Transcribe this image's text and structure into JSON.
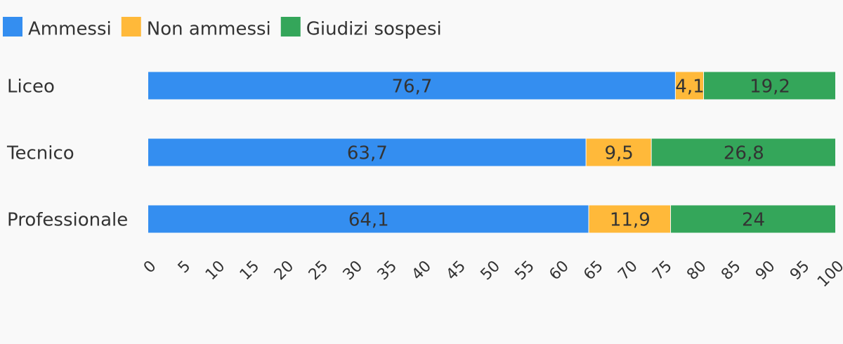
{
  "chart_data": {
    "type": "stacked_barh",
    "categories": [
      "Liceo",
      "Tecnico",
      "Professionale"
    ],
    "series": [
      {
        "name": "Ammessi",
        "color": "#348ef0",
        "values": [
          76.7,
          63.7,
          64.1
        ],
        "value_labels": [
          "76,7",
          "63,7",
          "64,1"
        ]
      },
      {
        "name": "Non ammessi",
        "color": "#ffb93a",
        "values": [
          4.1,
          9.5,
          11.9
        ],
        "value_labels": [
          "4,1",
          "9,5",
          "11,9"
        ]
      },
      {
        "name": "Giudizi sospesi",
        "color": "#34a65a",
        "values": [
          19.2,
          26.8,
          24
        ],
        "value_labels": [
          "19,2",
          "26,8",
          "24"
        ]
      }
    ],
    "xlim": [
      0,
      100
    ],
    "xticks": [
      0,
      5,
      10,
      15,
      20,
      25,
      30,
      35,
      40,
      45,
      50,
      55,
      60,
      65,
      70,
      75,
      80,
      85,
      90,
      95,
      100
    ],
    "legend": "top-left"
  }
}
